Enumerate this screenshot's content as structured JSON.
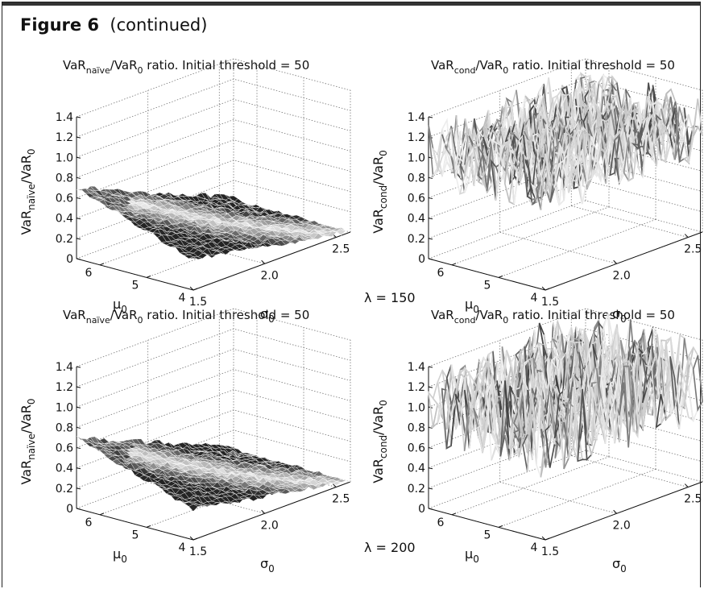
{
  "figure": {
    "label": "Figure 6",
    "continued": "(continued)"
  },
  "chart_data": [
    {
      "type": "surface",
      "title": {
        "pre": "VaR",
        "sub1": "naïve",
        "mid": "/VaR",
        "sub2": "0",
        "post": " ratio. Initial threshold = 50"
      },
      "zlabel": {
        "main": "VaR",
        "sub1": "naïve",
        "sep": "/VaR",
        "sub2": "0"
      },
      "xlabel": {
        "main": "σ",
        "sub": "0"
      },
      "ylabel": {
        "main": "μ",
        "sub": "0"
      },
      "zlim": [
        0,
        1.4
      ],
      "xlim": [
        1.5,
        2.6
      ],
      "ylim": [
        4,
        6.5
      ],
      "zticks": [
        "0",
        "0.2",
        "0.4",
        "0.6",
        "0.8",
        "1.0",
        "1.2",
        "1.4"
      ],
      "xticks": [
        "1.5",
        "2.0",
        "2.5"
      ],
      "yticks": [
        "4",
        "5",
        "6"
      ],
      "corners": {
        "mu6.5_sigma1.5": 0.7,
        "mu6.5_sigma2.6": 0.7,
        "mu4_sigma1.5": 0.3,
        "mu4_sigma2.6": 0.0
      },
      "grid": true,
      "lambda": ""
    },
    {
      "type": "surface",
      "title": {
        "pre": "VaR",
        "sub1": "cond",
        "mid": "/VaR",
        "sub2": "0",
        "post": " ratio. Initial threshold = 50"
      },
      "zlabel": {
        "main": "VaR",
        "sub1": "cond",
        "sep": "/VaR",
        "sub2": "0"
      },
      "xlabel": {
        "main": "σ",
        "sub": "0"
      },
      "ylabel": {
        "main": "μ",
        "sub": "0"
      },
      "zlim": [
        0,
        1.4
      ],
      "xlim": [
        1.5,
        2.6
      ],
      "ylim": [
        4,
        6.5
      ],
      "zticks": [
        "0",
        "0.2",
        "0.4",
        "0.6",
        "0.8",
        "1.0",
        "1.2",
        "1.4"
      ],
      "xticks": [
        "1.5",
        "2.0",
        "2.5"
      ],
      "yticks": [
        "4",
        "5",
        "6"
      ],
      "mean_level": 1.0,
      "noise_range": [
        0.7,
        1.35
      ],
      "grid": true,
      "lambda": "λ = 150"
    },
    {
      "type": "surface",
      "title": {
        "pre": "VaR",
        "sub1": "naïve",
        "mid": "/VaR",
        "sub2": "0",
        "post": " ratio. Initial threshold = 50"
      },
      "zlabel": {
        "main": "VaR",
        "sub1": "naïve",
        "sep": "/VaR",
        "sub2": "0"
      },
      "xlabel": {
        "main": "σ",
        "sub": "0"
      },
      "ylabel": {
        "main": "μ",
        "sub": "0"
      },
      "zlim": [
        0,
        1.4
      ],
      "xlim": [
        1.5,
        2.6
      ],
      "ylim": [
        4,
        6.5
      ],
      "zticks": [
        "0",
        "0.2",
        "0.4",
        "0.6",
        "0.8",
        "1.0",
        "1.2",
        "1.4"
      ],
      "xticks": [
        "1.5",
        "2.0",
        "2.5"
      ],
      "yticks": [
        "4",
        "5",
        "6"
      ],
      "corners": {
        "mu6.5_sigma1.5": 0.7,
        "mu6.5_sigma2.6": 0.72,
        "mu4_sigma1.5": 0.3,
        "mu4_sigma2.6": 0.0
      },
      "grid": true,
      "lambda": ""
    },
    {
      "type": "surface",
      "title": {
        "pre": "VaR",
        "sub1": "cond",
        "mid": "/VaR",
        "sub2": "0",
        "post": " ratio. Initial threshold = 50"
      },
      "zlabel": {
        "main": "VaR",
        "sub1": "cond",
        "sep": "/VaR",
        "sub2": "0"
      },
      "xlabel": {
        "main": "σ",
        "sub": "0"
      },
      "ylabel": {
        "main": "μ",
        "sub": "0"
      },
      "zlim": [
        0,
        1.4
      ],
      "xlim": [
        1.5,
        2.6
      ],
      "ylim": [
        4,
        6.5
      ],
      "zticks": [
        "0",
        "0.2",
        "0.4",
        "0.6",
        "0.8",
        "1.0",
        "1.2",
        "1.4"
      ],
      "xticks": [
        "1.5",
        "2.0",
        "2.5"
      ],
      "yticks": [
        "4",
        "5",
        "6"
      ],
      "mean_level": 1.0,
      "noise_range": [
        0.6,
        1.45
      ],
      "grid": true,
      "lambda": "λ = 200"
    }
  ]
}
